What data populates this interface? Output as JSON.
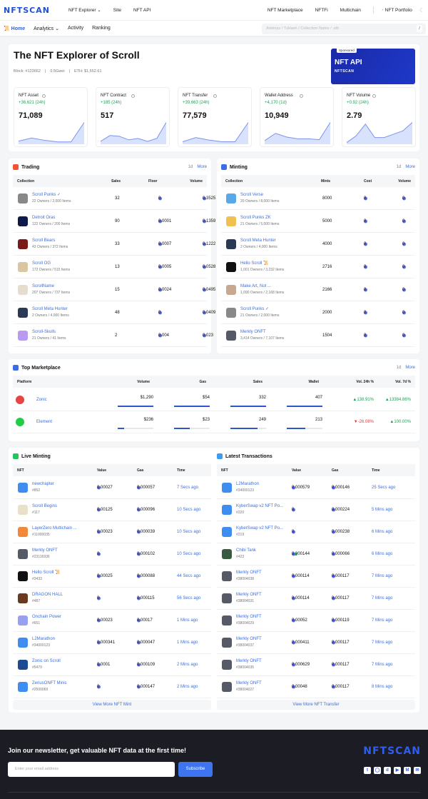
{
  "nav": {
    "logo": "NFTSCAN",
    "items": [
      "NFT Explorer ⌄",
      "Site",
      "NFT API"
    ],
    "right": [
      "NFT Marketplace",
      "NFTFi",
      "Multichain"
    ],
    "portfolio": "NFT Portfolio"
  },
  "subnav": {
    "items": [
      "Home",
      "Analytics ⌄",
      "Activity",
      "Ranking"
    ],
    "search_placeholder": "Address / TxHash / Collection Name / .eth",
    "search_shortcut": "/"
  },
  "hero": {
    "title": "The NFT Explorer of Scroll",
    "block": "Block: #123662",
    "gas": "0.5Gwei",
    "eth": "ETH: $1,552.61",
    "ad": {
      "badge": "Sponsored",
      "title": "NFT API",
      "brand": "NFTSCAN"
    }
  },
  "stats": [
    {
      "label": "NFT Asset",
      "change": "+36,621 (24h)",
      "value": "71,089",
      "sparkline": [
        2,
        4,
        2.5,
        1.5,
        1.5,
        14
      ]
    },
    {
      "label": "NFT Contract",
      "change": "+185 (24h)",
      "value": "517",
      "sparkline": [
        2,
        6,
        5.5,
        3,
        4,
        2,
        4,
        15
      ]
    },
    {
      "label": "NFT Transfer",
      "change": "+39,663 (24h)",
      "value": "77,579",
      "sparkline": [
        1.5,
        4,
        2.5,
        1.5,
        1.5,
        13
      ]
    },
    {
      "label": "Wallet Address",
      "change": "+4,170 (1d)",
      "value": "10,949",
      "sparkline": [
        2,
        6,
        4,
        3,
        3,
        2.5,
        12
      ]
    },
    {
      "label": "NFT Volume",
      "change": "+0.92 (24h)",
      "value": "2.79",
      "sparkline": [
        1,
        5,
        12,
        4,
        4,
        6,
        8,
        13
      ]
    }
  ],
  "trading": {
    "title": "Trading",
    "period": "1d",
    "more": "More",
    "headers": [
      "Collection",
      "Sales",
      "Floor",
      "Volume"
    ],
    "rows": [
      {
        "name": "Scroll Punks ✓",
        "sub": "22 Owners / 2,000 Items",
        "sales": "32",
        "floor": "0",
        "volume": "0.3525",
        "color": "#888"
      },
      {
        "name": "Detroit Oras",
        "sub": "122 Owners / 200 Items",
        "sales": "90",
        "floor": "0.0001",
        "volume": "0.1359",
        "color": "#0e1a4a"
      },
      {
        "name": "Scroll Bears",
        "sub": "43 Owners / 372 Items",
        "sales": "33",
        "floor": "0.0007",
        "volume": "0.1222",
        "color": "#7a1a1a"
      },
      {
        "name": "Scroll OG",
        "sub": "172 Owners / 515 Items",
        "sales": "13",
        "floor": "0.0005",
        "volume": "0.0528",
        "color": "#d8c7a0"
      },
      {
        "name": "ScrollName",
        "sub": "207 Owners / 737 Items",
        "sales": "15",
        "floor": "0.0024",
        "volume": "0.0495",
        "color": "#e6ddd0"
      },
      {
        "name": "Scroll Meta Hunter",
        "sub": "2 Owners / 4,000 Items",
        "sales": "48",
        "floor": "0",
        "volume": "0.0409",
        "color": "#2a3a55"
      },
      {
        "name": "Scroll-Skulls",
        "sub": "21 Owners / 41 Items",
        "sales": "2",
        "floor": "0.004",
        "volume": "0.023",
        "color": "#b89af0"
      }
    ]
  },
  "minting": {
    "title": "Minting",
    "period": "1d",
    "more": "More",
    "headers": [
      "Collection",
      "Mints",
      "Cost",
      "Volume"
    ],
    "rows": [
      {
        "name": "Scroll Verse",
        "sub": "20 Owners / 8,000 Items",
        "mints": "8000",
        "cost": "0",
        "volume": "0",
        "color": "#5aa8e8"
      },
      {
        "name": "Scroll Punks ZK",
        "sub": "21 Owners / 5,000 Items",
        "mints": "5000",
        "cost": "0",
        "volume": "0",
        "color": "#f0c050"
      },
      {
        "name": "Scroll Meta Hunter",
        "sub": "2 Owners / 4,000 Items",
        "mints": "4000",
        "cost": "0",
        "volume": "0",
        "color": "#2a3a55"
      },
      {
        "name": "Hello Scroll 📜",
        "sub": "1,001 Owners / 3,232 Items",
        "mints": "2716",
        "cost": "0",
        "volume": "0",
        "color": "#111"
      },
      {
        "name": "Make Art, Not ...",
        "sub": "1,090 Owners / 2,168 Items",
        "mints": "2166",
        "cost": "0",
        "volume": "0",
        "color": "#c9a890"
      },
      {
        "name": "Scroll Punks ✓",
        "sub": "21 Owners / 2,000 Items",
        "mints": "2000",
        "cost": "0",
        "volume": "0",
        "color": "#888"
      },
      {
        "name": "Merkly ONFT",
        "sub": "3,414 Owners / 7,107 Items",
        "mints": "1504",
        "cost": "0",
        "volume": "0",
        "color": "#555a66"
      }
    ]
  },
  "marketplace": {
    "title": "Top Marketplace",
    "period": "1d",
    "more": "More",
    "headers": [
      "Platform",
      "Volume",
      "Gas",
      "Sales",
      "Wallet",
      "Vol. 24h %",
      "Vol. 7d %"
    ],
    "rows": [
      {
        "name": "Zonic",
        "volume": "$1,290",
        "gas": "$54",
        "sales": "332",
        "wallet": "407",
        "v24": "▲138.91%",
        "v7": "▲13384.86%",
        "v24_up": true,
        "v7_up": true,
        "fill": [
          1,
          1,
          1,
          1
        ],
        "color": "#e84444"
      },
      {
        "name": "Element",
        "volume": "$236",
        "gas": "$23",
        "sales": "249",
        "wallet": "213",
        "v24": "▼-26.08%",
        "v7": "▲100.00%",
        "v24_up": false,
        "v7_up": true,
        "fill": [
          0.18,
          0.43,
          0.75,
          0.52
        ],
        "color": "#22cc44"
      }
    ]
  },
  "live": {
    "title": "Live Minting",
    "headers": [
      "NFT",
      "Value",
      "Gas",
      "Time"
    ],
    "more": "View More NFT Mint",
    "rows": [
      {
        "name": "newchapter",
        "id": "#852",
        "value": "0.00027",
        "gas": "0.000057",
        "time": "7 Secs ago",
        "color": "#3d8ef0"
      },
      {
        "name": "Scroll Begins",
        "id": "#117",
        "value": "0.00125",
        "gas": "0.000096",
        "time": "10 Secs ago",
        "color": "#e8e0c8"
      },
      {
        "name": "LayerZero Multichain ...",
        "id": "#11000035",
        "value": "0.00023",
        "gas": "0.000039",
        "time": "10 Secs ago",
        "color": "#f08a3a"
      },
      {
        "name": "Merkly ONFT",
        "id": "#23116936",
        "value": "0",
        "gas": "0.000102",
        "time": "10 Secs ago",
        "color": "#555a66"
      },
      {
        "name": "Hello Scroll 📜",
        "id": "#3433",
        "value": "0.00025",
        "gas": "0.000088",
        "time": "44 Secs ago",
        "color": "#111"
      },
      {
        "name": "DRAGON HALL",
        "id": "#487",
        "value": "0",
        "gas": "0.000115",
        "time": "56 Secs ago",
        "color": "#6a3a20"
      },
      {
        "name": "Onchain Power",
        "id": "#651",
        "value": "0.00023",
        "gas": "0.00017",
        "time": "1 Mins ago",
        "color": "#9aa0f0"
      },
      {
        "name": "L2Marathon",
        "id": "#34000123",
        "value": "0.000341",
        "gas": "0.000047",
        "time": "1 Mins ago",
        "color": "#3d8ef0"
      },
      {
        "name": "Zonic on Scroll",
        "id": "#5479",
        "value": "0.0001",
        "gas": "0.000109",
        "time": "2 Mins ago",
        "color": "#1a4a90"
      },
      {
        "name": "ZeriusONFT Minis",
        "id": "#2500069",
        "value": "0",
        "gas": "0.000147",
        "time": "2 Mins ago",
        "color": "#3d8ef0"
      }
    ]
  },
  "latest": {
    "title": "Latest Transactions",
    "headers": [
      "NFT",
      "Value",
      "Gas",
      "Time"
    ],
    "more": "View More NFT Transfer",
    "rows": [
      {
        "name": "L2Marathon",
        "id": "#34000123",
        "value": "0.000579",
        "gas": "0.000146",
        "time": "25 Secs ago",
        "color": "#3d8ef0"
      },
      {
        "name": "KyberSwap v2 NFT Po...",
        "id": "#220",
        "value": "0",
        "gas": "0.000224",
        "time": "5 Mins ago",
        "color": "#3d8ef0"
      },
      {
        "name": "KyberSwap v2 NFT Po...",
        "id": "#219",
        "value": "0",
        "gas": "0.000238",
        "time": "6 Mins ago",
        "color": "#3d8ef0"
      },
      {
        "name": "Chibi Tank",
        "id": "#423",
        "value": "0.000144",
        "gas": "0.000066",
        "time": "6 Mins ago",
        "color": "#3a5a40",
        "dot": true
      },
      {
        "name": "Merkly ONFT",
        "id": "#38004038",
        "value": "0.000114",
        "gas": "0.000117",
        "time": "7 Mins ago",
        "color": "#555a66"
      },
      {
        "name": "Merkly ONFT",
        "id": "#38004031",
        "value": "0.000114",
        "gas": "0.000117",
        "time": "7 Mins ago",
        "color": "#555a66"
      },
      {
        "name": "Merkly ONFT",
        "id": "#38004029",
        "value": "0.00052",
        "gas": "0.000119",
        "time": "7 Mins ago",
        "color": "#555a66"
      },
      {
        "name": "Merkly ONFT",
        "id": "#38004037",
        "value": "0.000411",
        "gas": "0.000117",
        "time": "7 Mins ago",
        "color": "#555a66"
      },
      {
        "name": "Merkly ONFT",
        "id": "#38004035",
        "value": "0.000629",
        "gas": "0.000117",
        "time": "7 Mins ago",
        "color": "#555a66"
      },
      {
        "name": "Merkly ONFT",
        "id": "#38004027",
        "value": "0.00048",
        "gas": "0.000117",
        "time": "8 Mins ago",
        "color": "#555a66"
      }
    ]
  },
  "footer": {
    "headline": "Join our newsletter, get valuable NFT data at the first time!",
    "email_placeholder": "Enter your email address",
    "subscribe": "Subscribe",
    "logo": "NFTSCAN",
    "social": [
      "twitter-icon",
      "github-icon",
      "discord-icon",
      "youtube-icon",
      "medium-icon",
      "mail-icon"
    ]
  },
  "colors": {
    "accent": "#3b6fe0",
    "up": "#22a05a",
    "down": "#e03c3c"
  }
}
